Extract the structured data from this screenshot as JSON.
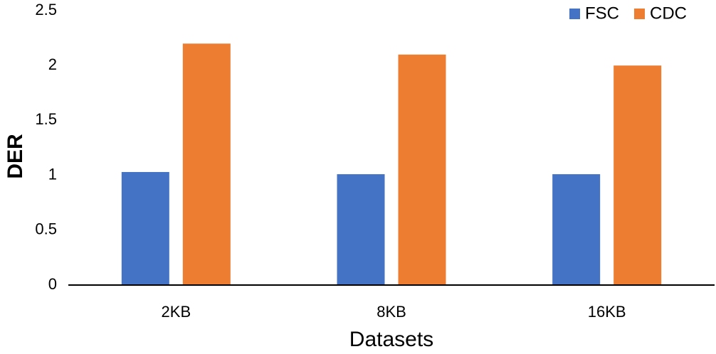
{
  "chart_data": {
    "type": "bar",
    "categories": [
      "2KB",
      "8KB",
      "16KB"
    ],
    "series": [
      {
        "name": "FSC",
        "values": [
          1.03,
          1.01,
          1.01
        ],
        "color": "#4472c4"
      },
      {
        "name": "CDC",
        "values": [
          2.2,
          2.1,
          2.0
        ],
        "color": "#ed7d31"
      }
    ],
    "title": "",
    "xlabel": "Datasets",
    "ylabel": "DER",
    "ylim": [
      0,
      2.5
    ],
    "yticks": [
      "0",
      "0.5",
      "1",
      "1.5",
      "2",
      "2.5"
    ],
    "grid": false,
    "legend_position": "top-right"
  }
}
